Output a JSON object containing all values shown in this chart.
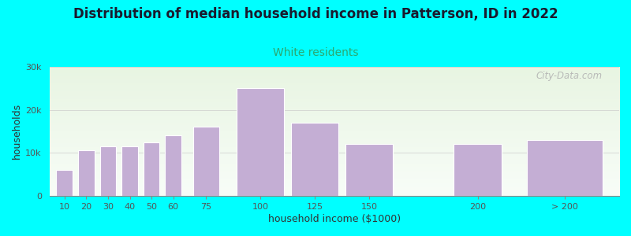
{
  "title": "Distribution of median household income in Patterson, ID in 2022",
  "subtitle": "White residents",
  "xlabel": "household income ($1000)",
  "ylabel": "households",
  "background_color": "#00FFFF",
  "plot_bg_gradient_top": "#e8f5e2",
  "plot_bg_gradient_bottom": "#f8fdf8",
  "bar_color": "#c4aed4",
  "bar_edge_color": "#ffffff",
  "title_fontsize": 12,
  "subtitle_fontsize": 10,
  "subtitle_color": "#2ca870",
  "values": [
    6000,
    10500,
    11500,
    11500,
    12500,
    14000,
    16000,
    25000,
    17000,
    12000,
    12000,
    13000
  ],
  "bar_positions": [
    10,
    20,
    30,
    40,
    50,
    60,
    75,
    100,
    125,
    150,
    200,
    240
  ],
  "bar_widths": [
    7.5,
    7.5,
    7.5,
    7.5,
    7.5,
    7.5,
    12,
    22,
    22,
    22,
    22,
    35
  ],
  "ylim": [
    0,
    30000
  ],
  "yticks": [
    0,
    10000,
    20000,
    30000
  ],
  "ytick_labels": [
    "0",
    "10k",
    "20k",
    "30k"
  ],
  "xtick_positions": [
    10,
    20,
    30,
    40,
    50,
    60,
    75,
    100,
    125,
    150,
    200,
    240
  ],
  "xtick_labels": [
    "10",
    "20",
    "30",
    "40",
    "50",
    "60",
    "75",
    "100",
    "125",
    "150",
    "200",
    "> 200"
  ],
  "watermark": "City-Data.com",
  "xlim_left": 3,
  "xlim_right": 265
}
